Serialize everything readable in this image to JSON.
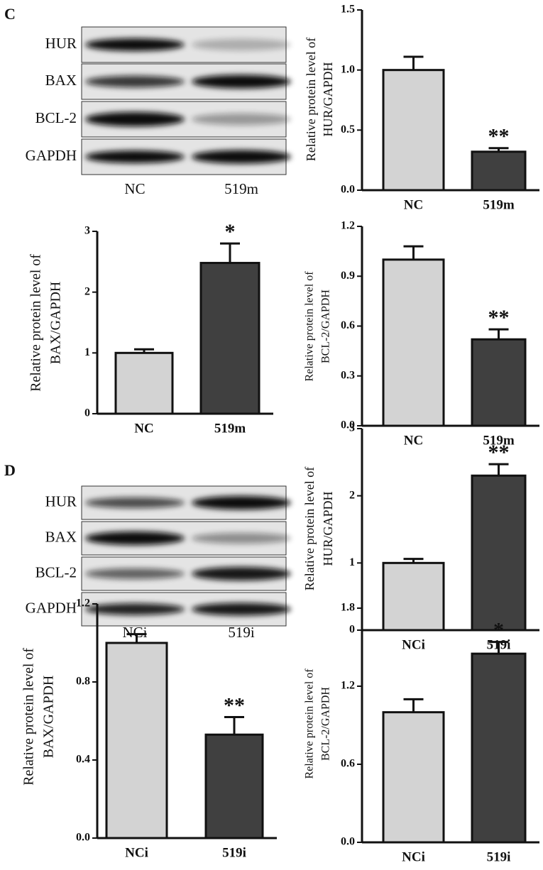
{
  "panels": [
    {
      "label": "C",
      "blot": {
        "rows": [
          "HUR",
          "BAX",
          "BCL-2",
          "GAPDH"
        ],
        "lanes": [
          "NC",
          "519m"
        ]
      }
    },
    {
      "label": "D",
      "blot": {
        "rows": [
          "HUR",
          "BAX",
          "BCL-2",
          "GAPDH"
        ],
        "lanes": [
          "NCi",
          "519i"
        ]
      }
    }
  ],
  "chart_data": [
    {
      "type": "bar",
      "ylabel": [
        "Relative protein level of",
        "HUR/GAPDH"
      ],
      "categories": [
        "NC",
        "519m"
      ],
      "values": [
        1.0,
        0.32
      ],
      "errors": [
        0.11,
        0.03
      ],
      "annotation": "**",
      "colors": [
        "#d3d3d3",
        "#404040"
      ],
      "ylim": [
        0,
        1.5
      ],
      "yticks": [
        {
          "value": 0,
          "label": "0.0"
        },
        {
          "value": 0.5,
          "label": "0.5"
        },
        {
          "value": 1,
          "label": "1.0"
        },
        {
          "value": 1.5,
          "label": "1.5"
        }
      ]
    },
    {
      "type": "bar",
      "ylabel": [
        "Relative protein level of",
        "BAX/GAPDH"
      ],
      "categories": [
        "NC",
        "519m"
      ],
      "values": [
        1.0,
        2.48
      ],
      "errors": [
        0.06,
        0.32
      ],
      "annotation": "*",
      "colors": [
        "#d3d3d3",
        "#404040"
      ],
      "ylim": [
        0,
        3
      ],
      "yticks": [
        0,
        1,
        2,
        3
      ]
    },
    {
      "type": "bar",
      "ylabel": [
        "Relative protein level of",
        "BCL-2/GAPDH"
      ],
      "categories": [
        "NC",
        "519m"
      ],
      "values": [
        1.0,
        0.52
      ],
      "errors": [
        0.08,
        0.06
      ],
      "annotation": "**",
      "colors": [
        "#d3d3d3",
        "#404040"
      ],
      "ylim": [
        0,
        1.2
      ],
      "yticks": [
        {
          "value": 0,
          "label": "0.0"
        },
        {
          "value": 0.3,
          "label": "0.3"
        },
        {
          "value": 0.6,
          "label": "0.6"
        },
        {
          "value": 0.9,
          "label": "0.9"
        },
        {
          "value": 1.2,
          "label": "1.2"
        }
      ]
    },
    {
      "type": "bar",
      "ylabel": [
        "Relative protein level of",
        "HUR/GAPDH"
      ],
      "categories": [
        "NCi",
        "519i"
      ],
      "values": [
        1.0,
        2.3
      ],
      "errors": [
        0.06,
        0.17
      ],
      "annotation": "**",
      "colors": [
        "#d3d3d3",
        "#404040"
      ],
      "ylim": [
        0,
        3
      ],
      "yticks": [
        0,
        1,
        2,
        3
      ]
    },
    {
      "type": "bar",
      "ylabel": [
        "Relative protein level of",
        "BAX/GAPDH"
      ],
      "categories": [
        "NCi",
        "519i"
      ],
      "values": [
        1.0,
        0.53
      ],
      "errors": [
        0.045,
        0.09
      ],
      "annotation": "**",
      "colors": [
        "#d3d3d3",
        "#404040"
      ],
      "ylim": [
        0,
        1.2
      ],
      "yticks": [
        {
          "value": 0,
          "label": "0.0"
        },
        {
          "value": 0.4,
          "label": "0.4"
        },
        {
          "value": 0.8,
          "label": "0.8"
        },
        {
          "value": 1.2,
          "label": "1.2"
        }
      ]
    },
    {
      "type": "bar",
      "ylabel": [
        "Relative protein level of",
        "BCL-2/GAPDH"
      ],
      "categories": [
        "NCi",
        "519i"
      ],
      "values": [
        1.0,
        1.45
      ],
      "errors": [
        0.1,
        0.09
      ],
      "annotation": "*",
      "colors": [
        "#d3d3d3",
        "#404040"
      ],
      "ylim": [
        0,
        1.8
      ],
      "yticks": [
        {
          "value": 0,
          "label": "0.0"
        },
        {
          "value": 0.6,
          "label": "0.6"
        },
        {
          "value": 1.2,
          "label": "1.2"
        },
        {
          "value": 1.8,
          "label": "1.8"
        }
      ]
    }
  ]
}
